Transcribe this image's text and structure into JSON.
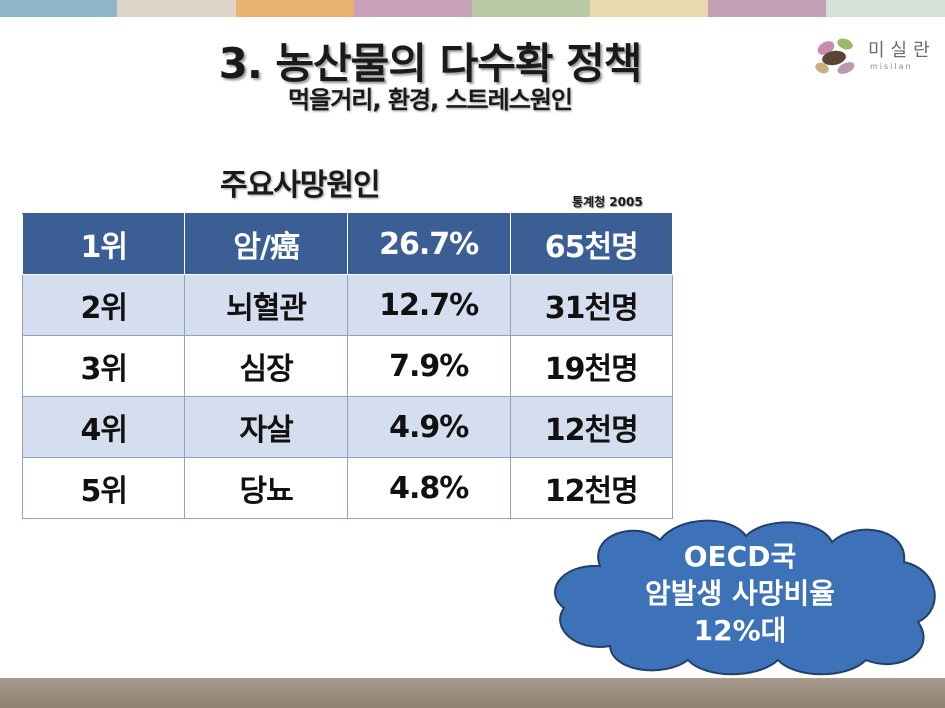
{
  "slide": {
    "title": "3. 농산물의 다수확 정책",
    "subtitle": "먹을거리, 환경, 스트레스원인"
  },
  "logo": {
    "name": "미실란",
    "romanized": "misilan"
  },
  "table": {
    "heading": "주요사망원인",
    "source": "통계청 2005",
    "rows": [
      {
        "rank": "1위",
        "cause": "암/癌",
        "rate": "26.7%",
        "count": "65천명"
      },
      {
        "rank": "2위",
        "cause": "뇌혈관",
        "rate": "12.7%",
        "count": "31천명"
      },
      {
        "rank": "3위",
        "cause": "심장",
        "rate": "7.9%",
        "count": "19천명"
      },
      {
        "rank": "4위",
        "cause": "자살",
        "rate": "4.9%",
        "count": "12천명"
      },
      {
        "rank": "5위",
        "cause": "당뇨",
        "rate": "4.8%",
        "count": "12천명"
      }
    ]
  },
  "callout": {
    "line1": "OECD국",
    "line2": "암발생 사망비율",
    "line3": "12%대"
  },
  "colors": {
    "header_row": "#3b5f94",
    "alt_row": "#d5deee",
    "cloud_fill": "#3d72b8",
    "cloud_stroke": "#243f6a"
  }
}
